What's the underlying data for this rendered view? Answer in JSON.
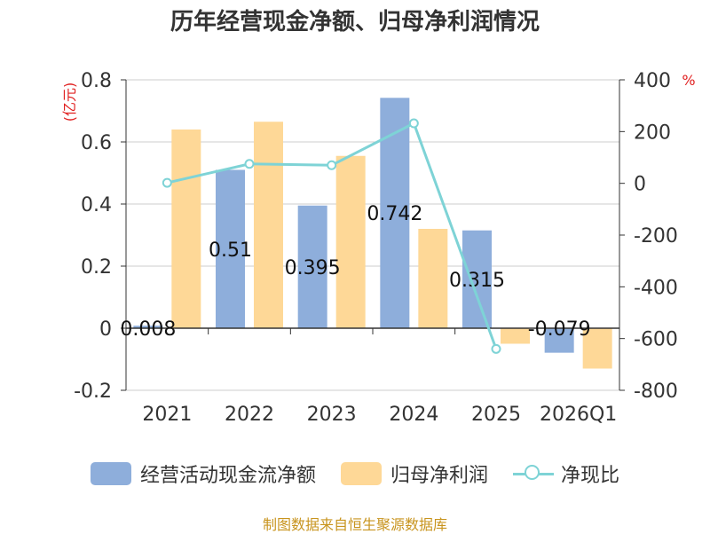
{
  "chart_data": {
    "type": "bar+line",
    "title": "历年经营现金净额、归母净利润情况",
    "categories": [
      "2021",
      "2022",
      "2023",
      "2024",
      "2025",
      "2026Q1"
    ],
    "series": [
      {
        "name": "经营活动现金流净额",
        "type": "bar",
        "axis": "left",
        "color": "#8eaedb",
        "values": [
          0.008,
          0.51,
          0.395,
          0.742,
          0.315,
          -0.079
        ],
        "labels": [
          "0.008",
          "0.51",
          "0.395",
          "0.742",
          "0.315",
          "-0.079"
        ]
      },
      {
        "name": "归母净利润",
        "type": "bar",
        "axis": "left",
        "color": "#fed897",
        "values": [
          0.64,
          0.665,
          0.555,
          0.32,
          -0.05,
          -0.13
        ]
      },
      {
        "name": "净现比",
        "type": "line",
        "axis": "right",
        "color": "#7ed3d6",
        "values": [
          2,
          75,
          70,
          232,
          -640,
          null
        ]
      }
    ],
    "left_axis": {
      "unit": "(亿元)",
      "ylim": [
        -0.2,
        0.8
      ],
      "ticks": [
        "0.8",
        "0.6",
        "0.4",
        "0.2",
        "0",
        "-0.2"
      ],
      "tick_values": [
        0.8,
        0.6,
        0.4,
        0.2,
        0,
        -0.2
      ]
    },
    "right_axis": {
      "unit": "%",
      "ylim": [
        -800,
        400
      ],
      "ticks": [
        "400",
        "200",
        "0",
        "-200",
        "-400",
        "-600",
        "-800"
      ],
      "tick_values": [
        400,
        200,
        0,
        -200,
        -400,
        -600,
        -800
      ]
    },
    "grid": true,
    "legend_position": "bottom"
  },
  "source_text": "制图数据来自恒生聚源数据库"
}
